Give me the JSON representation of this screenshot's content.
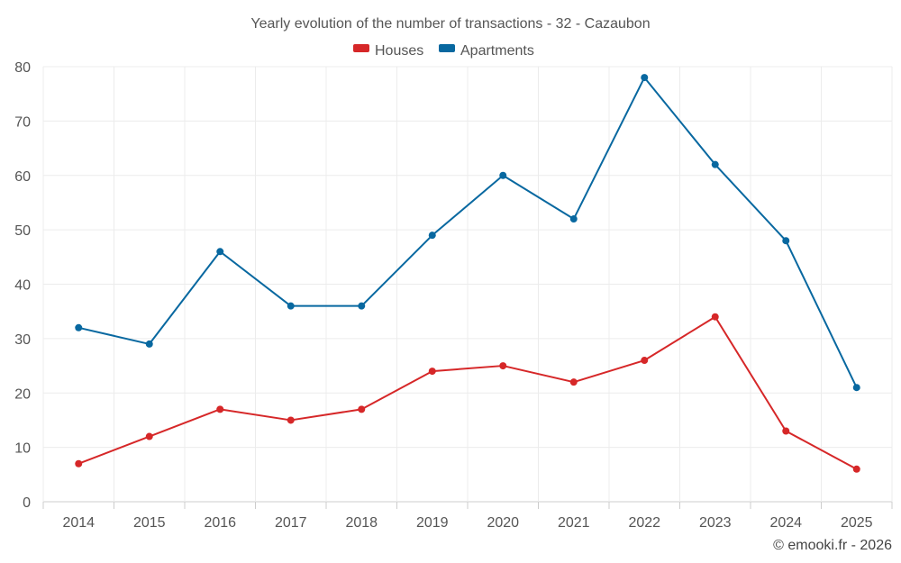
{
  "chart_data": {
    "type": "line",
    "title": "Yearly evolution of the number of transactions - 32 - Cazaubon",
    "categories": [
      "2014",
      "2015",
      "2016",
      "2017",
      "2018",
      "2019",
      "2020",
      "2021",
      "2022",
      "2023",
      "2024",
      "2025"
    ],
    "series": [
      {
        "name": "Houses",
        "color": "#d62728",
        "values": [
          7,
          12,
          17,
          15,
          17,
          24,
          25,
          22,
          26,
          34,
          13,
          6
        ]
      },
      {
        "name": "Apartments",
        "color": "#0868a0",
        "values": [
          32,
          29,
          46,
          36,
          36,
          49,
          60,
          52,
          78,
          62,
          48,
          21
        ]
      }
    ],
    "ylim": [
      0,
      80
    ],
    "yticks": [
      0,
      10,
      20,
      30,
      40,
      50,
      60,
      70,
      80
    ],
    "xlabel": "",
    "ylabel": "",
    "grid": true,
    "legend_position": "top-center"
  },
  "credit": "© emooki.fr - 2026"
}
